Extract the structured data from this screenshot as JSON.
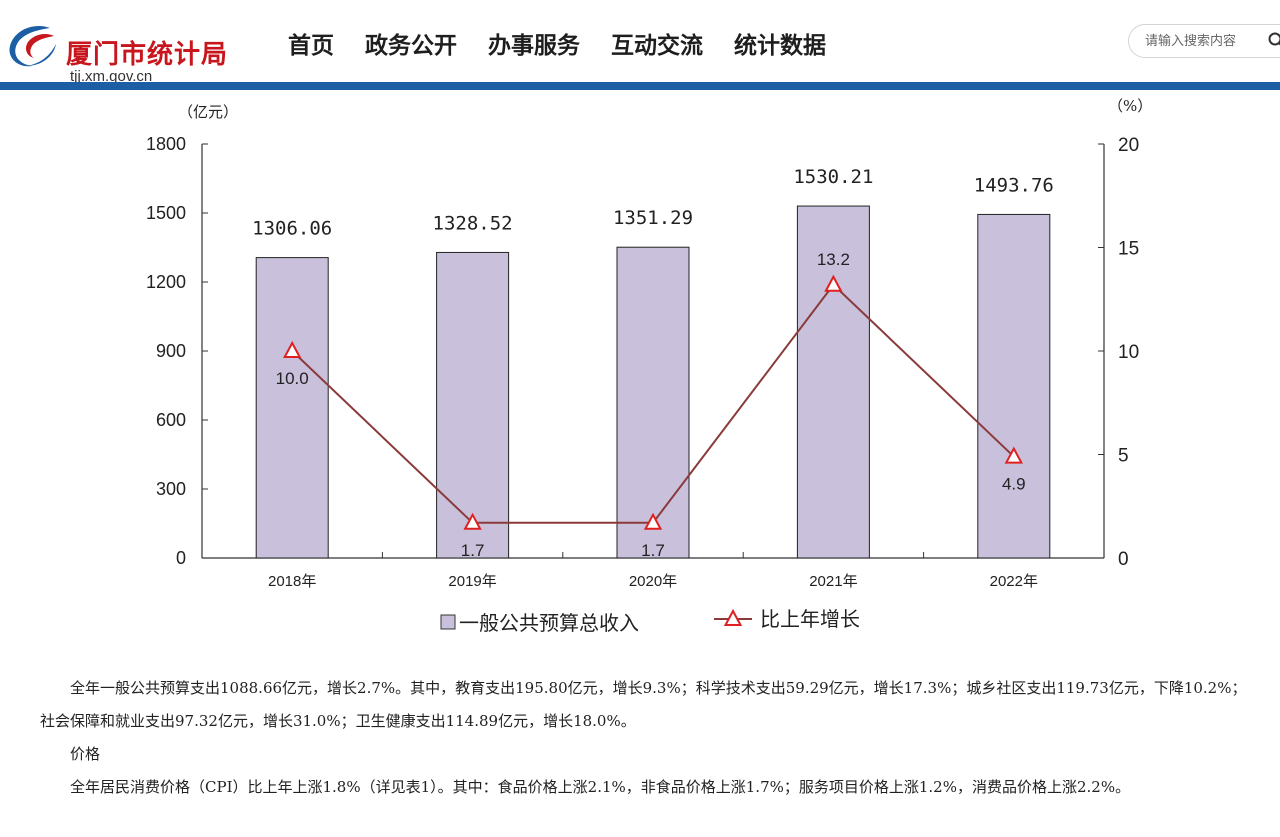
{
  "header": {
    "site_title": "厦门市统计局",
    "domain": "tjj.xm.gov.cn",
    "nav": [
      "首页",
      "政务公开",
      "办事服务",
      "互动交流",
      "统计数据"
    ],
    "search_placeholder": "请输入搜索内容",
    "brand_color": "#c8161d",
    "bar_color": "#1c5ea4"
  },
  "chart_data": {
    "type": "bar",
    "categories": [
      "2018年",
      "2019年",
      "2020年",
      "2021年",
      "2022年"
    ],
    "series": [
      {
        "name": "一般公共预算总收入",
        "type": "bar",
        "axis": "left",
        "values": [
          1306.06,
          1328.52,
          1351.29,
          1530.21,
          1493.76
        ],
        "labels": [
          "1306.06",
          "1328.52",
          "1351.29",
          "1530.21",
          "1493.76"
        ],
        "color": "#c9c0dc"
      },
      {
        "name": "比上年增长",
        "type": "line",
        "axis": "right",
        "values": [
          10.0,
          1.7,
          1.7,
          13.2,
          4.9
        ],
        "labels": [
          "10.0",
          "1.7",
          "1.7",
          "13.2",
          "4.9"
        ],
        "color": "#8b3a3a",
        "marker_color": "#e02020"
      }
    ],
    "ylabel_left": "（亿元）",
    "ylabel_right": "（%）",
    "ylim_left": [
      0,
      1800
    ],
    "yticks_left": [
      0,
      300,
      600,
      900,
      1200,
      1500,
      1800
    ],
    "ylim_right": [
      0,
      20
    ],
    "yticks_right": [
      0,
      5,
      10,
      15,
      20
    ],
    "grid": false,
    "legend_position": "bottom"
  },
  "content": {
    "paragraphs": [
      "全年一般公共预算支出1088.66亿元，增长2.7%。其中，教育支出195.80亿元，增长9.3%；科学技术支出59.29亿元，增长17.3%；城乡社区支出119.73亿元，下降10.2%；社会保障和就业支出97.32亿元，增长31.0%；卫生健康支出114.89亿元，增长18.0%。",
      "价格",
      "全年居民消费价格（CPI）比上年上涨1.8%（详见表1）。其中：食品价格上涨2.1%，非食品价格上涨1.7%；服务项目价格上涨1.2%，消费品价格上涨2.2%。"
    ]
  }
}
